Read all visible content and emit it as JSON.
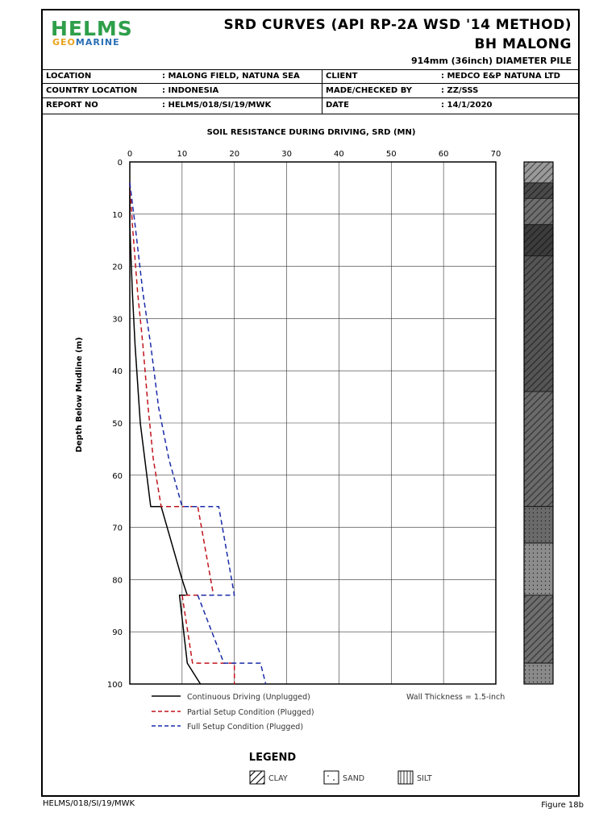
{
  "header": {
    "logo_top": "HELMS",
    "logo_geo": "GEO",
    "logo_marine": "MARINE",
    "title_line1": "SRD CURVES (API RP-2A WSD '14 METHOD)",
    "title_line2": "BH MALONG",
    "title_line3": "914mm (36inch) DIAMETER PILE"
  },
  "info": {
    "location_label": "LOCATION",
    "location_value": ": MALONG FIELD, NATUNA SEA",
    "country_label": "COUNTRY LOCATION",
    "country_value": ": INDONESIA",
    "report_label": "REPORT NO",
    "report_value": ": HELMS/018/SI/19/MWK",
    "client_label": "CLIENT",
    "client_value": ": MEDCO E&P NATUNA LTD",
    "made_label": "MADE/CHECKED BY",
    "made_value": ": ZZ/SSS",
    "date_label": "DATE",
    "date_value": ": 14/1/2020"
  },
  "footer": {
    "left": "HELMS/018/SI/19/MWK",
    "right": "Figure 18b"
  },
  "legend": {
    "title": "LEGEND",
    "clay": "CLAY",
    "sand": "SAND",
    "silt": "SILT",
    "wall_thickness": "Wall Thickness = 1.5-inch"
  },
  "colors": {
    "unplugged": "#000000",
    "partial": "#c0141c",
    "full": "#1a2aa8",
    "logo_green": "#2e9f4a",
    "logo_orange": "#e8a21b",
    "logo_blue": "#2a6fb5"
  },
  "chart_data": {
    "type": "line",
    "title": "SOIL RESISTANCE DURING DRIVING, SRD (MN)",
    "xlabel": "",
    "ylabel": "Depth Below Mudline (m)",
    "xlim": [
      0,
      70
    ],
    "ylim": [
      0,
      100
    ],
    "y_inverted": true,
    "x_axis_position": "top",
    "grid": true,
    "xticks": [
      0,
      10,
      20,
      30,
      40,
      50,
      60,
      70
    ],
    "yticks": [
      0,
      10,
      20,
      30,
      40,
      50,
      60,
      70,
      80,
      90,
      100
    ],
    "series": [
      {
        "name": "Continuous Driving (Unplugged)",
        "color": "#000000",
        "dash": "solid",
        "points": [
          [
            0,
            4
          ],
          [
            0,
            12
          ],
          [
            0.5,
            25
          ],
          [
            1,
            35
          ],
          [
            2,
            50
          ],
          [
            3.5,
            62
          ],
          [
            4,
            66
          ],
          [
            6,
            66
          ],
          [
            10,
            80
          ],
          [
            11,
            83
          ],
          [
            9.5,
            83
          ],
          [
            11,
            96
          ],
          [
            13.5,
            100
          ]
        ]
      },
      {
        "name": "Partial Setup Condition (Plugged)",
        "color": "#c0141c",
        "dash": "dashed",
        "points": [
          [
            0,
            4
          ],
          [
            0.5,
            12
          ],
          [
            1.5,
            25
          ],
          [
            2.5,
            35
          ],
          [
            3.5,
            47
          ],
          [
            4.5,
            57
          ],
          [
            6,
            66
          ],
          [
            13,
            66
          ],
          [
            16,
            83
          ],
          [
            10,
            83
          ],
          [
            12,
            96
          ],
          [
            20,
            96
          ],
          [
            20,
            100
          ]
        ]
      },
      {
        "name": "Full Setup Condition (Plugged)",
        "color": "#1a2aa8",
        "dash": "dashed",
        "points": [
          [
            0,
            4
          ],
          [
            1,
            12
          ],
          [
            2.5,
            25
          ],
          [
            4,
            35
          ],
          [
            5.5,
            47
          ],
          [
            7.5,
            57
          ],
          [
            10,
            66
          ],
          [
            17,
            66
          ],
          [
            20,
            83
          ],
          [
            13,
            83
          ],
          [
            18,
            96
          ],
          [
            25,
            96
          ],
          [
            26,
            100
          ]
        ]
      }
    ],
    "soil_column": [
      {
        "from": 0,
        "to": 4,
        "type": "clay",
        "shade": "#9a9a9a"
      },
      {
        "from": 4,
        "to": 7,
        "type": "clay",
        "shade": "#4a4a4a"
      },
      {
        "from": 7,
        "to": 12,
        "type": "clay",
        "shade": "#6e6e6e"
      },
      {
        "from": 12,
        "to": 18,
        "type": "clay",
        "shade": "#3c3c3c"
      },
      {
        "from": 18,
        "to": 44,
        "type": "clay",
        "shade": "#555555"
      },
      {
        "from": 44,
        "to": 66,
        "type": "clay",
        "shade": "#6a6a6a"
      },
      {
        "from": 66,
        "to": 73,
        "type": "sand",
        "shade": "#6a6a6a"
      },
      {
        "from": 73,
        "to": 83,
        "type": "sand",
        "shade": "#8c8c8c"
      },
      {
        "from": 83,
        "to": 96,
        "type": "clay",
        "shade": "#6e6e6e"
      },
      {
        "from": 96,
        "to": 100,
        "type": "sand",
        "shade": "#8a8a8a"
      }
    ]
  }
}
